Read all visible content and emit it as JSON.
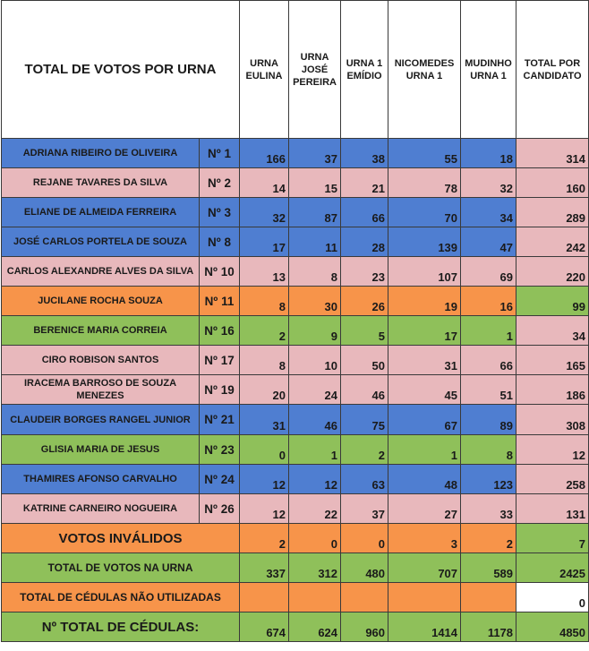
{
  "header": {
    "title": "TOTAL DE VOTOS POR URNA",
    "columns": [
      "URNA EULINA",
      "URNA JOSÉ PEREIRA",
      "URNA 1 EMÍDIO",
      "NICOMEDES URNA 1",
      "MUDINHO URNA 1",
      "TOTAL POR CANDIDATO"
    ]
  },
  "candidates": [
    {
      "name": "ADRIANA RIBEIRO DE OLIVEIRA",
      "num": "Nº 1",
      "votes": [
        "166",
        "37",
        "38",
        "55",
        "18",
        "314"
      ],
      "color": "#4f7ed1"
    },
    {
      "name": "REJANE TAVARES DA SILVA",
      "num": "Nº 2",
      "votes": [
        "14",
        "15",
        "21",
        "78",
        "32",
        "160"
      ],
      "color": "#e8b8bc"
    },
    {
      "name": "ELIANE DE ALMEIDA FERREIRA",
      "num": "Nº 3",
      "votes": [
        "32",
        "87",
        "66",
        "70",
        "34",
        "289"
      ],
      "color": "#4f7ed1"
    },
    {
      "name": "JOSÉ CARLOS PORTELA DE SOUZA",
      "num": "Nº 8",
      "votes": [
        "17",
        "11",
        "28",
        "139",
        "47",
        "242"
      ],
      "color": "#4f7ed1"
    },
    {
      "name": "CARLOS ALEXANDRE ALVES DA SILVA",
      "num": "Nº 10",
      "votes": [
        "13",
        "8",
        "23",
        "107",
        "69",
        "220"
      ],
      "color": "#e8b8bc"
    },
    {
      "name": "JUCILANE ROCHA SOUZA",
      "num": "Nº 11",
      "votes": [
        "8",
        "30",
        "26",
        "19",
        "16",
        "99"
      ],
      "color": "#f7944a"
    },
    {
      "name": "BERENICE MARIA CORREIA",
      "num": "Nº 16",
      "votes": [
        "2",
        "9",
        "5",
        "17",
        "1",
        "34"
      ],
      "color": "#8fc05a"
    },
    {
      "name": "CIRO ROBISON SANTOS",
      "num": "Nº 17",
      "votes": [
        "8",
        "10",
        "50",
        "31",
        "66",
        "165"
      ],
      "color": "#e8b8bc"
    },
    {
      "name": "IRACEMA BARROSO DE SOUZA MENEZES",
      "num": "Nº 19",
      "votes": [
        "20",
        "24",
        "46",
        "45",
        "51",
        "186"
      ],
      "color": "#e8b8bc"
    },
    {
      "name": "CLAUDEIR BORGES RANGEL JUNIOR",
      "num": "Nº 21",
      "votes": [
        "31",
        "46",
        "75",
        "67",
        "89",
        "308"
      ],
      "color": "#4f7ed1"
    },
    {
      "name": "GLISIA MARIA DE JESUS",
      "num": "Nº 23",
      "votes": [
        "0",
        "1",
        "2",
        "1",
        "8",
        "12"
      ],
      "color": "#8fc05a"
    },
    {
      "name": "THAMIRES AFONSO CARVALHO",
      "num": "Nº 24",
      "votes": [
        "12",
        "12",
        "63",
        "48",
        "123",
        "258"
      ],
      "color": "#4f7ed1"
    },
    {
      "name": "KATRINE CARNEIRO NOGUEIRA",
      "num": "Nº 26",
      "votes": [
        "12",
        "22",
        "37",
        "27",
        "33",
        "131"
      ],
      "color": "#e8b8bc"
    }
  ],
  "summary": {
    "invalid": {
      "label": "VOTOS INVÁLIDOS",
      "values": [
        "2",
        "0",
        "0",
        "3",
        "2",
        "7"
      ]
    },
    "total_votes": {
      "label": "TOTAL DE VOTOS NA URNA",
      "values": [
        "337",
        "312",
        "480",
        "707",
        "589",
        "2425"
      ]
    },
    "unused": {
      "label": "TOTAL DE CÉDULAS NÃO UTILIZADAS",
      "values": [
        "",
        "",
        "",
        "",
        "",
        "0"
      ]
    },
    "total_ballots": {
      "label": "Nº TOTAL DE CÉDULAS:",
      "values": [
        "674",
        "624",
        "960",
        "1414",
        "1178",
        "4850"
      ]
    }
  },
  "colors": {
    "blue": "#4f7ed1",
    "pink": "#e8b8bc",
    "orange": "#f7944a",
    "green": "#8fc05a"
  }
}
